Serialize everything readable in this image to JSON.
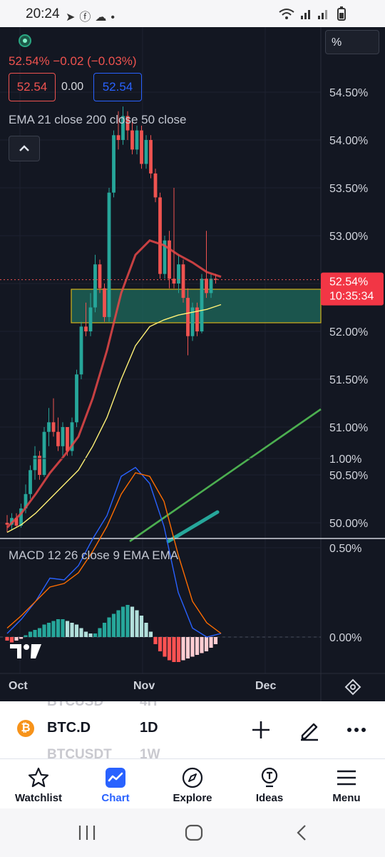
{
  "status_bar": {
    "time": "20:24",
    "notification_icons": [
      "telegram-icon",
      "facebook-icon",
      "cloud-icon",
      "dot-icon"
    ],
    "system_icons": [
      "wifi-icon",
      "signal-icon",
      "signal-icon",
      "battery-icon"
    ]
  },
  "chart": {
    "percent_button": "%",
    "change_text": "52.54%  −0.02 (−0.03%)",
    "bid_price": "52.54",
    "spread": "0.00",
    "ask_price": "52.54",
    "indicators_label": "EMA 21 close 200 close 50 close",
    "price_axis_labels": [
      "54.50%",
      "54.00%",
      "53.50%",
      "53.00%",
      "52.00%",
      "51.50%",
      "51.00%",
      "50.50%",
      "50.00%"
    ],
    "last_price_tag": "52.54%",
    "countdown": "10:35:34",
    "macd_label": "MACD 12 26 close 9 EMA EMA",
    "macd_axis_labels": [
      "1.00%",
      "0.50%",
      "0.00%"
    ],
    "time_axis_labels": [
      "Oct",
      "Nov",
      "Dec"
    ],
    "colors": {
      "background": "#131722",
      "up": "#26a69a",
      "down": "#ef5350",
      "ema21": "#e84848",
      "ema50": "#fff176",
      "trendline": "#4caf50",
      "zone_fill": "#1f6b5c",
      "zone_border": "#d4b21a",
      "macd_line": "#2962ff",
      "signal_line": "#ff6d00"
    }
  },
  "symbol_bar": {
    "symbol": "BTC.D",
    "interval": "1D",
    "ghost_above_symbol": "BTCUSD",
    "ghost_above_interval": "4H",
    "ghost_below_symbol": "BTCUSDT",
    "ghost_below_interval": "1W",
    "icon": "bitcoin-icon"
  },
  "tabs": [
    {
      "label": "Watchlist",
      "icon": "star-icon",
      "active": false
    },
    {
      "label": "Chart",
      "icon": "chart-icon",
      "active": true
    },
    {
      "label": "Explore",
      "icon": "compass-icon",
      "active": false
    },
    {
      "label": "Ideas",
      "icon": "lightbulb-icon",
      "active": false
    },
    {
      "label": "Menu",
      "icon": "menu-icon",
      "active": false
    }
  ],
  "nav_bar": {
    "buttons": [
      "recent-apps-icon",
      "home-icon",
      "back-icon"
    ]
  }
}
